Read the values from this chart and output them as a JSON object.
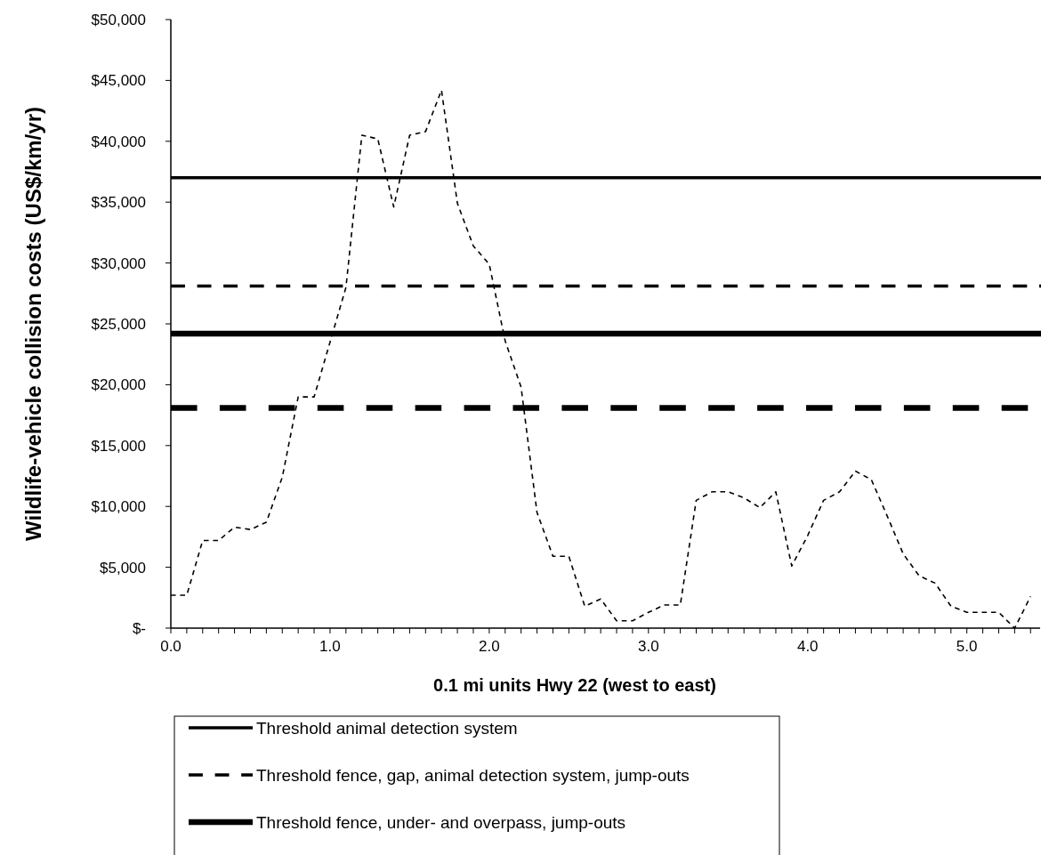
{
  "chart_data": {
    "type": "line",
    "xlabel": "0.1 mi units Hwy 22 (west to east)",
    "ylabel": "Wildlife-vehicle collision costs (US$/km/yr)",
    "x": [
      0,
      0.1,
      0.2,
      0.3,
      0.4,
      0.5,
      0.6,
      0.7,
      0.8,
      0.9,
      1.0,
      1.1,
      1.2,
      1.3,
      1.4,
      1.5,
      1.6,
      1.7,
      1.8,
      1.9,
      2.0,
      2.1,
      2.2,
      2.3,
      2.4,
      2.5,
      2.6,
      2.7,
      2.8,
      2.9,
      3.0,
      3.1,
      3.2,
      3.3,
      3.4,
      3.5,
      3.6,
      3.7,
      3.8,
      3.9,
      4.0,
      4.1,
      4.2,
      4.3,
      4.4,
      4.5,
      4.6,
      4.7,
      4.8,
      4.9,
      5.0,
      5.1,
      5.2,
      5.3,
      5.4
    ],
    "series": [
      {
        "color": "#000000",
        "line_style": "dashed",
        "values": [
          2700,
          2700,
          7200,
          7200,
          8300,
          8100,
          8700,
          12400,
          19000,
          19000,
          23500,
          28000,
          40500,
          40200,
          34600,
          40500,
          40800,
          44200,
          34900,
          31400,
          29900,
          23600,
          19800,
          9500,
          5900,
          5900,
          1800,
          2400,
          600,
          600,
          1300,
          1900,
          1900,
          10500,
          11200,
          11200,
          10700,
          9900,
          11200,
          5100,
          7600,
          10500,
          11200,
          12900,
          12200,
          9200,
          6100,
          4300,
          3700,
          1800,
          1300,
          1300,
          1300,
          0,
          2600
        ]
      }
    ],
    "xlim": [
      0,
      5.46
    ],
    "xticks": [
      {
        "value": 0,
        "label": "0.0"
      },
      {
        "value": 0.1,
        "label": null
      },
      {
        "value": 0.2,
        "label": null
      },
      {
        "value": 0.3,
        "label": null
      },
      {
        "value": 0.4,
        "label": null
      },
      {
        "value": 0.5,
        "label": null
      },
      {
        "value": 0.6,
        "label": null
      },
      {
        "value": 0.7,
        "label": null
      },
      {
        "value": 0.8,
        "label": null
      },
      {
        "value": 0.9,
        "label": null
      },
      {
        "value": 1,
        "label": "1.0"
      },
      {
        "value": 1.1,
        "label": null
      },
      {
        "value": 1.2,
        "label": null
      },
      {
        "value": 1.3,
        "label": null
      },
      {
        "value": 1.4,
        "label": null
      },
      {
        "value": 1.5,
        "label": null
      },
      {
        "value": 1.6,
        "label": null
      },
      {
        "value": 1.7,
        "label": null
      },
      {
        "value": 1.8,
        "label": null
      },
      {
        "value": 1.9,
        "label": null
      },
      {
        "value": 2,
        "label": "2.0"
      },
      {
        "value": 2.1,
        "label": null
      },
      {
        "value": 2.2,
        "label": null
      },
      {
        "value": 2.3,
        "label": null
      },
      {
        "value": 2.4,
        "label": null
      },
      {
        "value": 2.5,
        "label": null
      },
      {
        "value": 2.6,
        "label": null
      },
      {
        "value": 2.7,
        "label": null
      },
      {
        "value": 2.8,
        "label": null
      },
      {
        "value": 2.9,
        "label": null
      },
      {
        "value": 3,
        "label": "3.0"
      },
      {
        "value": 3.1,
        "label": null
      },
      {
        "value": 3.2,
        "label": null
      },
      {
        "value": 3.3,
        "label": null
      },
      {
        "value": 3.4,
        "label": null
      },
      {
        "value": 3.5,
        "label": null
      },
      {
        "value": 3.6,
        "label": null
      },
      {
        "value": 3.7,
        "label": null
      },
      {
        "value": 3.8,
        "label": null
      },
      {
        "value": 3.9,
        "label": null
      },
      {
        "value": 4,
        "label": "4.0"
      },
      {
        "value": 4.1,
        "label": null
      },
      {
        "value": 4.2,
        "label": null
      },
      {
        "value": 4.3,
        "label": null
      },
      {
        "value": 4.4,
        "label": null
      },
      {
        "value": 4.5,
        "label": null
      },
      {
        "value": 4.6,
        "label": null
      },
      {
        "value": 4.7,
        "label": null
      },
      {
        "value": 4.8,
        "label": null
      },
      {
        "value": 4.9,
        "label": null
      },
      {
        "value": 5,
        "label": "5.0"
      },
      {
        "value": 5.1,
        "label": null
      },
      {
        "value": 5.2,
        "label": null
      },
      {
        "value": 5.3,
        "label": null
      },
      {
        "value": 5.4,
        "label": null
      }
    ],
    "ylim": [
      0,
      50000
    ],
    "yticks": [
      {
        "value": 0,
        "label": "$-"
      },
      {
        "value": 5000,
        "label": "$5,000"
      },
      {
        "value": 10000,
        "label": "$10,000"
      },
      {
        "value": 15000,
        "label": "$15,000"
      },
      {
        "value": 20000,
        "label": "$20,000"
      },
      {
        "value": 25000,
        "label": "$25,000"
      },
      {
        "value": 30000,
        "label": "$30,000"
      },
      {
        "value": 35000,
        "label": "$35,000"
      },
      {
        "value": 40000,
        "label": "$40,000"
      },
      {
        "value": 45000,
        "label": "$45,000"
      },
      {
        "value": 50000,
        "label": "$50,000"
      }
    ],
    "ref_lines": [
      {
        "axis": "y",
        "value": 37000,
        "label": "Threshold animal detection system",
        "color": "#000000",
        "line_style": "solid"
      },
      {
        "axis": "y",
        "value": 28100,
        "label": "Threshold fence, gap, animal detection system, jump-outs",
        "color": "#000000",
        "line_style": "dashed"
      },
      {
        "axis": "y",
        "value": 24200,
        "label": "Threshold fence, under- and overpass, jump-outs",
        "color": "#000000",
        "line_style": "solid"
      },
      {
        "axis": "y",
        "value": 18100,
        "color": "#000000",
        "line_style": "dashed"
      }
    ],
    "legend": "bottom",
    "grid": false,
    "marker": "none"
  }
}
